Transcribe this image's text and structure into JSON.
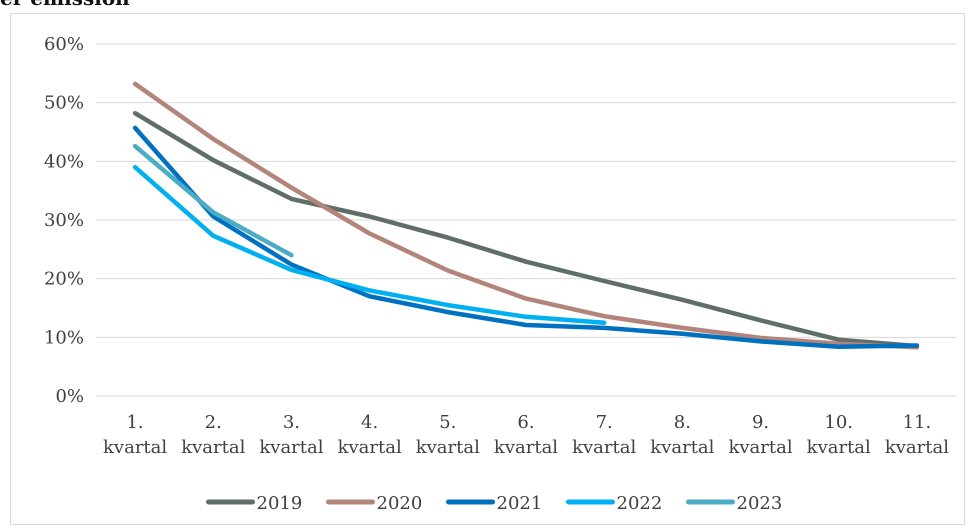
{
  "page": {
    "title_fragment": "er emission"
  },
  "chart_data": {
    "type": "line",
    "title": "",
    "xlabel": "",
    "ylabel": "",
    "ylim": [
      0,
      60
    ],
    "y_ticks": [
      "0%",
      "10%",
      "20%",
      "30%",
      "40%",
      "50%",
      "60%"
    ],
    "categories": [
      [
        "1.",
        "kvartal"
      ],
      [
        "2.",
        "kvartal"
      ],
      [
        "3.",
        "kvartal"
      ],
      [
        "4.",
        "kvartal"
      ],
      [
        "5.",
        "kvartal"
      ],
      [
        "6.",
        "kvartal"
      ],
      [
        "7.",
        "kvartal"
      ],
      [
        "8.",
        "kvartal"
      ],
      [
        "9.",
        "kvartal"
      ],
      [
        "10.",
        "kvartal"
      ],
      [
        "11.",
        "kvartal"
      ]
    ],
    "grid": true,
    "legend_position": "bottom",
    "series": [
      {
        "name": "2019",
        "color": "#5f6f68",
        "values": [
          48.2,
          40.2,
          33.6,
          30.6,
          27.0,
          22.9,
          19.6,
          16.4,
          12.9,
          9.6,
          8.5
        ]
      },
      {
        "name": "2020",
        "color": "#b3857a",
        "values": [
          53.2,
          43.8,
          35.5,
          27.7,
          21.4,
          16.6,
          13.6,
          11.6,
          9.9,
          8.9,
          8.3
        ]
      },
      {
        "name": "2021",
        "color": "#0070c0",
        "values": [
          45.7,
          30.6,
          22.4,
          17.0,
          14.3,
          12.1,
          11.6,
          10.6,
          9.3,
          8.4,
          8.6
        ]
      },
      {
        "name": "2022",
        "color": "#00b0f0",
        "values": [
          39.0,
          27.3,
          21.5,
          18.0,
          15.5,
          13.5,
          12.5,
          null,
          null,
          null,
          null
        ]
      },
      {
        "name": "2023",
        "color": "#4bacc6",
        "values": [
          42.6,
          31.3,
          24.0,
          null,
          null,
          null,
          null,
          null,
          null,
          null,
          null
        ]
      }
    ]
  }
}
